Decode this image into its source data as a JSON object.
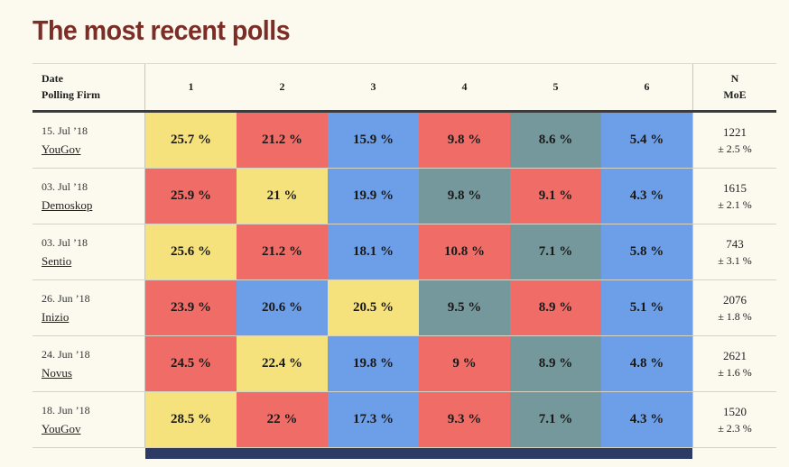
{
  "colors": {
    "yellow": "#F6E27C",
    "red": "#EF6D66",
    "blue": "#6D9EE8",
    "teal": "#74989B",
    "navy": "#2C3A64"
  },
  "chart_data": {
    "type": "table",
    "title": "The most recent polls",
    "header": {
      "date_label": "Date",
      "firm_label": "Polling Firm",
      "n_label": "N",
      "moe_label": "MoE"
    },
    "column_headers": [
      "1",
      "2",
      "3",
      "4",
      "5",
      "6"
    ],
    "rows": [
      {
        "date": "15. Jul ’18",
        "firm": "YouGov",
        "n": "1221",
        "moe": "± 2.5 %",
        "cells": [
          {
            "value": "25.7 %",
            "color": "yellow"
          },
          {
            "value": "21.2 %",
            "color": "red"
          },
          {
            "value": "15.9 %",
            "color": "blue"
          },
          {
            "value": "9.8 %",
            "color": "red"
          },
          {
            "value": "8.6 %",
            "color": "teal"
          },
          {
            "value": "5.4 %",
            "color": "blue"
          }
        ]
      },
      {
        "date": "03. Jul ’18",
        "firm": "Demoskop",
        "n": "1615",
        "moe": "± 2.1 %",
        "cells": [
          {
            "value": "25.9 %",
            "color": "red"
          },
          {
            "value": "21 %",
            "color": "yellow"
          },
          {
            "value": "19.9 %",
            "color": "blue"
          },
          {
            "value": "9.8 %",
            "color": "teal"
          },
          {
            "value": "9.1 %",
            "color": "red"
          },
          {
            "value": "4.3 %",
            "color": "blue"
          }
        ]
      },
      {
        "date": "03. Jul ’18",
        "firm": "Sentio",
        "n": "743",
        "moe": "± 3.1 %",
        "cells": [
          {
            "value": "25.6 %",
            "color": "yellow"
          },
          {
            "value": "21.2 %",
            "color": "red"
          },
          {
            "value": "18.1 %",
            "color": "blue"
          },
          {
            "value": "10.8 %",
            "color": "red"
          },
          {
            "value": "7.1 %",
            "color": "teal"
          },
          {
            "value": "5.8 %",
            "color": "blue"
          }
        ]
      },
      {
        "date": "26. Jun ’18",
        "firm": "Inizio",
        "n": "2076",
        "moe": "± 1.8 %",
        "cells": [
          {
            "value": "23.9 %",
            "color": "red"
          },
          {
            "value": "20.6 %",
            "color": "blue"
          },
          {
            "value": "20.5 %",
            "color": "yellow"
          },
          {
            "value": "9.5 %",
            "color": "teal"
          },
          {
            "value": "8.9 %",
            "color": "red"
          },
          {
            "value": "5.1 %",
            "color": "blue"
          }
        ]
      },
      {
        "date": "24. Jun ’18",
        "firm": "Novus",
        "n": "2621",
        "moe": "± 1.6 %",
        "cells": [
          {
            "value": "24.5 %",
            "color": "red"
          },
          {
            "value": "22.4 %",
            "color": "yellow"
          },
          {
            "value": "19.8 %",
            "color": "blue"
          },
          {
            "value": "9 %",
            "color": "red"
          },
          {
            "value": "8.9 %",
            "color": "teal"
          },
          {
            "value": "4.8 %",
            "color": "blue"
          }
        ]
      },
      {
        "date": "18. Jun ’18",
        "firm": "YouGov",
        "n": "1520",
        "moe": "± 2.3 %",
        "cells": [
          {
            "value": "28.5 %",
            "color": "yellow"
          },
          {
            "value": "22 %",
            "color": "red"
          },
          {
            "value": "17.3 %",
            "color": "blue"
          },
          {
            "value": "9.3 %",
            "color": "red"
          },
          {
            "value": "7.1 %",
            "color": "teal"
          },
          {
            "value": "4.3 %",
            "color": "blue"
          }
        ]
      }
    ]
  },
  "next_row_peek": {
    "color": "navy"
  }
}
